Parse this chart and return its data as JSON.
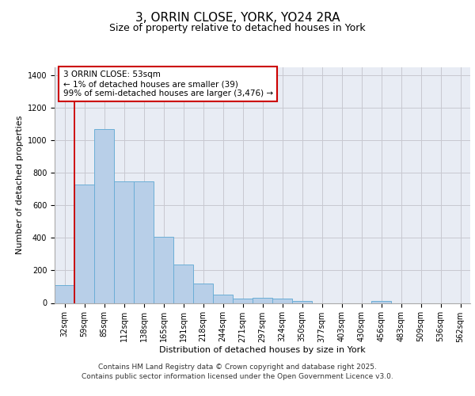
{
  "title_line1": "3, ORRIN CLOSE, YORK, YO24 2RA",
  "title_line2": "Size of property relative to detached houses in York",
  "xlabel": "Distribution of detached houses by size in York",
  "ylabel": "Number of detached properties",
  "categories": [
    "32sqm",
    "59sqm",
    "85sqm",
    "112sqm",
    "138sqm",
    "165sqm",
    "191sqm",
    "218sqm",
    "244sqm",
    "271sqm",
    "297sqm",
    "324sqm",
    "350sqm",
    "377sqm",
    "403sqm",
    "430sqm",
    "456sqm",
    "483sqm",
    "509sqm",
    "536sqm",
    "562sqm"
  ],
  "values": [
    110,
    730,
    1070,
    750,
    750,
    405,
    237,
    120,
    50,
    25,
    30,
    25,
    12,
    0,
    0,
    0,
    12,
    0,
    0,
    0,
    0
  ],
  "bar_color": "#b8cfe8",
  "bar_edge_color": "#6baed6",
  "grid_color": "#c8c8d0",
  "bg_color": "#e8ecf4",
  "vline_color": "#cc0000",
  "vline_x": 0.5,
  "annotation_text": "3 ORRIN CLOSE: 53sqm\n← 1% of detached houses are smaller (39)\n99% of semi-detached houses are larger (3,476) →",
  "annotation_box_color": "#cc0000",
  "ylim": [
    0,
    1450
  ],
  "yticks": [
    0,
    200,
    400,
    600,
    800,
    1000,
    1200,
    1400
  ],
  "footer_line1": "Contains HM Land Registry data © Crown copyright and database right 2025.",
  "footer_line2": "Contains public sector information licensed under the Open Government Licence v3.0.",
  "title_fontsize": 11,
  "subtitle_fontsize": 9,
  "axis_label_fontsize": 8,
  "tick_fontsize": 7,
  "annot_fontsize": 7.5,
  "footer_fontsize": 6.5
}
